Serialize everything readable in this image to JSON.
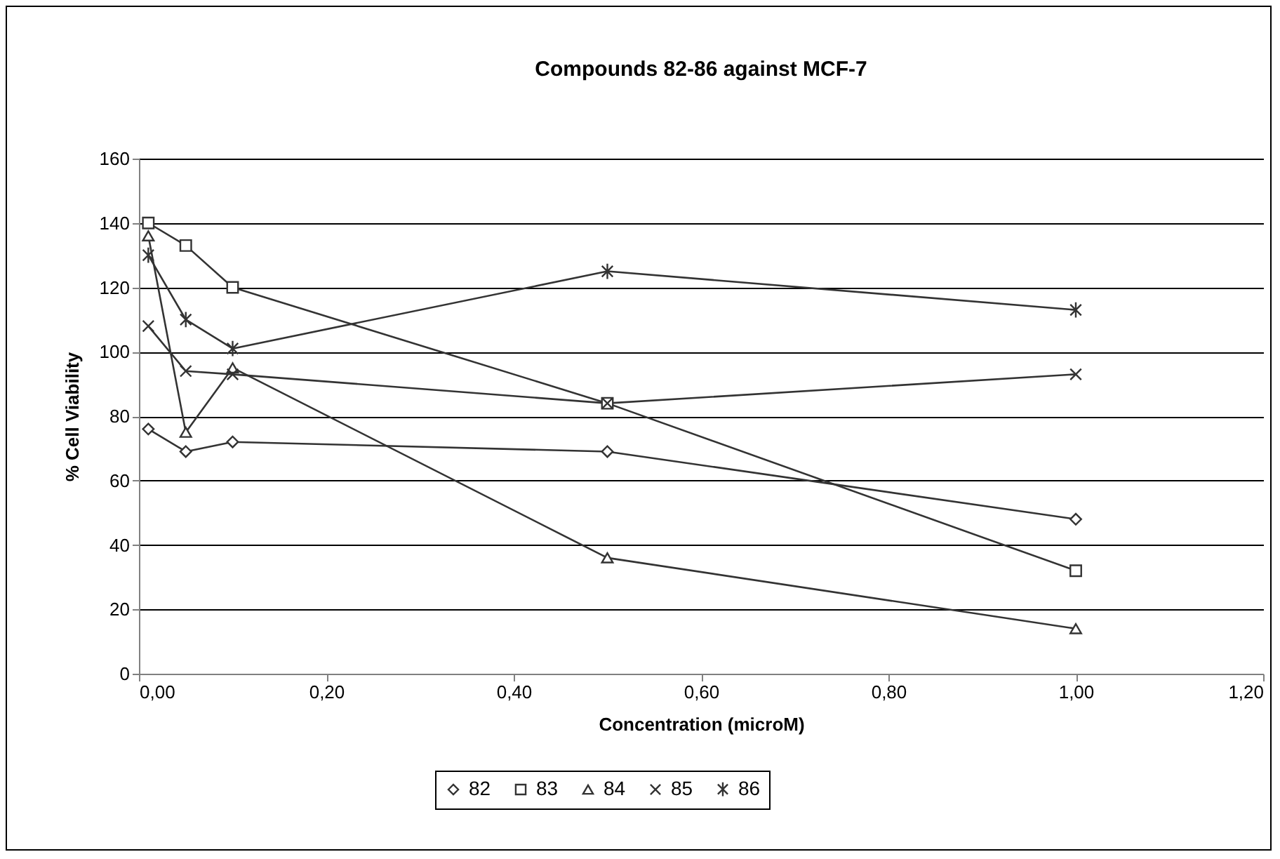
{
  "chart_data": {
    "type": "line",
    "title": "Compounds 82-86 against MCF-7",
    "xlabel": "Concentration (microM)",
    "ylabel": "% Cell Viability",
    "x": [
      0.01,
      0.05,
      0.1,
      0.5,
      1.0
    ],
    "series": [
      {
        "name": "82",
        "color": "#333333",
        "marker": "diamond",
        "values": [
          76,
          69,
          72,
          69,
          48
        ]
      },
      {
        "name": "83",
        "color": "#333333",
        "marker": "square",
        "values": [
          140,
          133,
          120,
          84,
          32
        ]
      },
      {
        "name": "84",
        "color": "#333333",
        "marker": "triangle",
        "values": [
          136,
          75,
          95,
          36,
          14
        ]
      },
      {
        "name": "85",
        "color": "#333333",
        "marker": "cross",
        "values": [
          108,
          94,
          93,
          84,
          93
        ]
      },
      {
        "name": "86",
        "color": "#333333",
        "marker": "cross",
        "values": [
          130,
          110,
          101,
          125,
          113
        ]
      }
    ],
    "xlim": [
      0,
      1.2
    ],
    "xticks": [
      {
        "value": 0,
        "label": "0,00"
      },
      {
        "value": 0.2,
        "label": "0,20"
      },
      {
        "value": 0.4,
        "label": "0,40"
      },
      {
        "value": 0.6,
        "label": "0,60"
      },
      {
        "value": 0.8,
        "label": "0,80"
      },
      {
        "value": 1.0,
        "label": "1,00"
      },
      {
        "value": 1.2,
        "label": "1,20"
      }
    ],
    "ylim": [
      0,
      160
    ],
    "yticks": [
      0,
      20,
      40,
      60,
      80,
      100,
      120,
      140,
      160
    ],
    "grid": "y",
    "legend": "bottom",
    "line_style": "solid"
  }
}
